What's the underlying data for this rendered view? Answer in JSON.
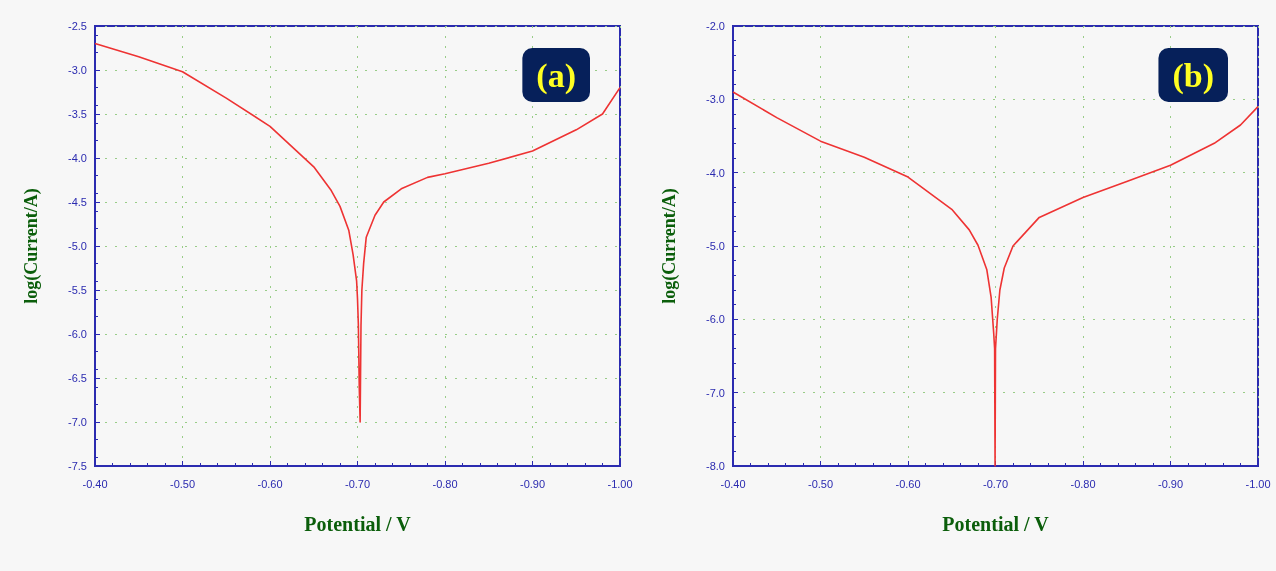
{
  "chart_data": [
    {
      "type": "line",
      "xlabel": "Potential / V",
      "ylabel": "log(Current/A)",
      "annotations": [
        "(a)"
      ],
      "grid": true,
      "marker": "none",
      "line_style": "solid",
      "xlim": [
        -0.4,
        -1.0
      ],
      "xticks": [
        {
          "value": -0.4,
          "label": "-0.40"
        },
        {
          "value": -0.5,
          "label": "-0.50"
        },
        {
          "value": -0.6,
          "label": "-0.60"
        },
        {
          "value": -0.7,
          "label": "-0.70"
        },
        {
          "value": -0.8,
          "label": "-0.80"
        },
        {
          "value": -0.9,
          "label": "-0.90"
        },
        {
          "value": -1.0,
          "label": "-1.00"
        }
      ],
      "ylim": [
        -7.5,
        -2.5
      ],
      "yticks": [
        {
          "value": -7.5,
          "label": "-7.5"
        },
        {
          "value": -7.0,
          "label": "-7.0"
        },
        {
          "value": -6.5,
          "label": "-6.5"
        },
        {
          "value": -6.0,
          "label": "-6.0"
        },
        {
          "value": -5.5,
          "label": "-5.5"
        },
        {
          "value": -5.0,
          "label": "-5.0"
        },
        {
          "value": -4.5,
          "label": "-4.5"
        },
        {
          "value": -4.0,
          "label": "-4.0"
        },
        {
          "value": -3.5,
          "label": "-3.5"
        },
        {
          "value": -3.0,
          "label": "-3.0"
        },
        {
          "value": -2.5,
          "label": "-2.5"
        }
      ],
      "series": [
        {
          "color": "#ee3333",
          "x": [
            -0.4,
            -0.45,
            -0.5,
            -0.55,
            -0.6,
            -0.65,
            -0.67,
            -0.68,
            -0.69,
            -0.695,
            -0.699,
            -0.7,
            -0.701,
            -0.702,
            -0.703,
            -0.704,
            -0.705,
            -0.707,
            -0.71,
            -0.72,
            -0.73,
            -0.75,
            -0.78,
            -0.8,
            -0.85,
            -0.9,
            -0.95,
            -0.98,
            -1.0
          ],
          "values": [
            -2.7,
            -2.85,
            -3.02,
            -3.32,
            -3.64,
            -4.1,
            -4.37,
            -4.55,
            -4.82,
            -5.1,
            -5.4,
            -5.6,
            -5.9,
            -6.6,
            -7.0,
            -5.9,
            -5.5,
            -5.2,
            -4.9,
            -4.65,
            -4.5,
            -4.35,
            -4.22,
            -4.18,
            -4.06,
            -3.92,
            -3.68,
            -3.5,
            -3.2
          ]
        }
      ]
    },
    {
      "type": "line",
      "xlabel": "Potential / V",
      "ylabel": "log(Current/A)",
      "annotations": [
        "(b)"
      ],
      "grid": true,
      "marker": "none",
      "line_style": "solid",
      "xlim": [
        -0.4,
        -1.0
      ],
      "xticks": [
        {
          "value": -0.4,
          "label": "-0.40"
        },
        {
          "value": -0.5,
          "label": "-0.50"
        },
        {
          "value": -0.6,
          "label": "-0.60"
        },
        {
          "value": -0.7,
          "label": "-0.70"
        },
        {
          "value": -0.8,
          "label": "-0.80"
        },
        {
          "value": -0.9,
          "label": "-0.90"
        },
        {
          "value": -1.0,
          "label": "-1.00"
        }
      ],
      "ylim": [
        -8.0,
        -2.0
      ],
      "yticks": [
        {
          "value": -8.0,
          "label": "-8.0"
        },
        {
          "value": -7.0,
          "label": "-7.0"
        },
        {
          "value": -6.0,
          "label": "-6.0"
        },
        {
          "value": -5.0,
          "label": "-5.0"
        },
        {
          "value": -4.0,
          "label": "-4.0"
        },
        {
          "value": -3.0,
          "label": "-3.0"
        },
        {
          "value": -2.0,
          "label": "-2.0"
        }
      ],
      "series": [
        {
          "color": "#ee3333",
          "x": [
            -0.4,
            -0.45,
            -0.5,
            -0.55,
            -0.6,
            -0.65,
            -0.67,
            -0.68,
            -0.69,
            -0.695,
            -0.698,
            -0.699,
            -0.6995,
            -0.7,
            -0.702,
            -0.705,
            -0.71,
            -0.72,
            -0.75,
            -0.8,
            -0.85,
            -0.9,
            -0.95,
            -0.98,
            -1.0
          ],
          "values": [
            -2.9,
            -3.25,
            -3.57,
            -3.79,
            -4.06,
            -4.5,
            -4.78,
            -4.99,
            -5.32,
            -5.7,
            -6.2,
            -6.4,
            -8.0,
            -6.4,
            -6.0,
            -5.6,
            -5.3,
            -5.0,
            -4.61,
            -4.34,
            -4.12,
            -3.9,
            -3.6,
            -3.35,
            -3.1
          ]
        }
      ]
    }
  ]
}
